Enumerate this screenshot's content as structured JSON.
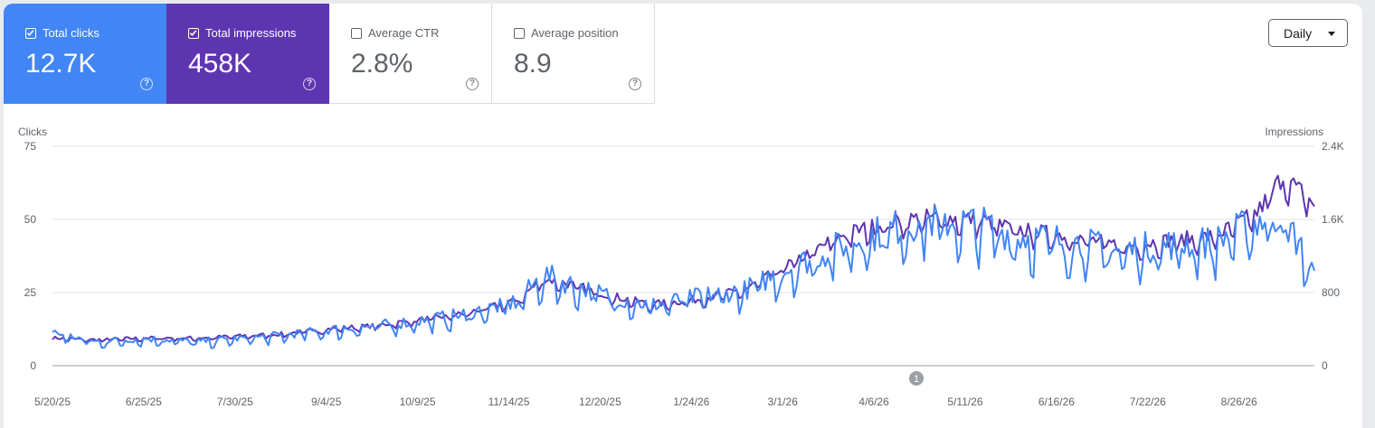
{
  "metrics": [
    {
      "label": "Total clicks",
      "value": "12.7K",
      "checked": true
    },
    {
      "label": "Total impressions",
      "value": "458K",
      "checked": true
    },
    {
      "label": "Average CTR",
      "value": "2.8%",
      "checked": false
    },
    {
      "label": "Average position",
      "value": "8.9",
      "checked": false
    }
  ],
  "help_glyph": "?",
  "granularity": "Daily",
  "annotation_marker": "1",
  "colors": {
    "clicks": "#4285f4",
    "impressions": "#5e35b1"
  },
  "chart_data": {
    "type": "line",
    "x_ticks": [
      "5/20/25",
      "6/25/25",
      "7/30/25",
      "9/4/25",
      "10/9/25",
      "11/14/25",
      "12/20/25",
      "1/24/26",
      "3/1/26",
      "4/6/26",
      "5/11/26",
      "6/16/26",
      "7/22/26",
      "8/26/26"
    ],
    "left_axis": {
      "label": "Clicks",
      "ticks": [
        "75",
        "50",
        "25",
        "0"
      ],
      "range": [
        0,
        75
      ]
    },
    "right_axis": {
      "label": "Impressions",
      "ticks": [
        "2.4K",
        "1.6K",
        "800",
        "0"
      ],
      "range": [
        0,
        2400
      ]
    },
    "grid": true,
    "x_range": [
      "2025-05-20",
      "2026-09-17"
    ],
    "series": [
      {
        "name": "Clicks",
        "axis": "left",
        "x": [
          "2025-05-20",
          "2025-06-05",
          "2025-06-25",
          "2025-07-15",
          "2025-07-30",
          "2025-08-15",
          "2025-09-04",
          "2025-09-20",
          "2025-10-09",
          "2025-10-25",
          "2025-11-14",
          "2025-11-25",
          "2025-12-05",
          "2025-12-20",
          "2026-01-05",
          "2026-01-24",
          "2026-02-10",
          "2026-03-01",
          "2026-03-20",
          "2026-04-06",
          "2026-04-20",
          "2026-05-11",
          "2026-05-25",
          "2026-06-16",
          "2026-07-05",
          "2026-07-22",
          "2026-08-10",
          "2026-08-26",
          "2026-09-05",
          "2026-09-17"
        ],
        "values": [
          11,
          8,
          9,
          8,
          9,
          10,
          12,
          13,
          15,
          17,
          21,
          30,
          27,
          23,
          20,
          23,
          25,
          33,
          40,
          45,
          48,
          47,
          43,
          41,
          38,
          40,
          41,
          48,
          50,
          30
        ]
      },
      {
        "name": "Impressions",
        "axis": "right",
        "x": [
          "2025-05-20",
          "2025-06-05",
          "2025-06-25",
          "2025-07-15",
          "2025-07-30",
          "2025-08-15",
          "2025-09-04",
          "2025-09-20",
          "2025-10-09",
          "2025-10-25",
          "2025-11-14",
          "2025-11-25",
          "2025-12-05",
          "2025-12-20",
          "2026-01-05",
          "2026-01-24",
          "2026-02-10",
          "2026-03-01",
          "2026-03-20",
          "2026-04-06",
          "2026-04-20",
          "2026-05-11",
          "2026-05-25",
          "2026-06-16",
          "2026-07-05",
          "2026-07-22",
          "2026-08-10",
          "2026-08-26",
          "2026-09-05",
          "2026-09-17"
        ],
        "values": [
          300,
          280,
          300,
          300,
          320,
          340,
          400,
          430,
          500,
          560,
          700,
          940,
          880,
          760,
          660,
          720,
          820,
          1120,
          1420,
          1540,
          1600,
          1580,
          1470,
          1400,
          1290,
          1350,
          1400,
          1650,
          2050,
          1740
        ]
      }
    ]
  }
}
